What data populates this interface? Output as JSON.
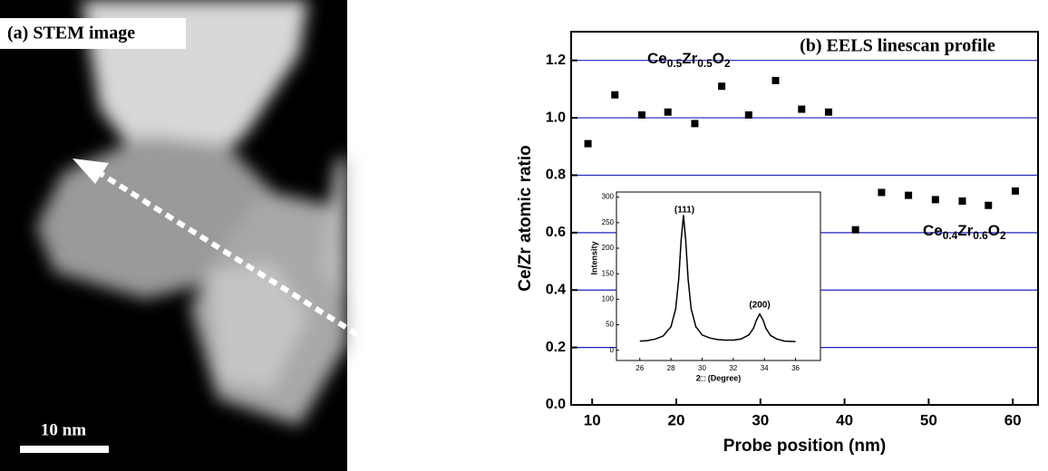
{
  "panel_a": {
    "label": "(a) STEM image",
    "scale_bar": "10 nm"
  },
  "chart_data": [
    {
      "type": "scatter",
      "title": "(b) EELS linescan profile",
      "x_label": "Probe position (nm)",
      "y_label": "Ce/Zr atomic ratio",
      "x": [
        9.5,
        12.7,
        15.9,
        19.0,
        22.2,
        25.4,
        28.6,
        31.8,
        34.9,
        38.1,
        41.3,
        44.4,
        47.6,
        50.8,
        54.0,
        57.1,
        60.3
      ],
      "values": [
        0.91,
        1.08,
        1.01,
        1.02,
        0.98,
        1.11,
        1.01,
        1.13,
        1.03,
        1.02,
        0.61,
        0.74,
        0.73,
        0.715,
        0.71,
        0.695,
        0.745
      ],
      "color": "#000000",
      "grid": true,
      "grid_color": "#2020c0",
      "xlim": [
        7.5,
        63
      ],
      "ylim": [
        0,
        1.3
      ],
      "xticks": [
        10,
        20,
        30,
        40,
        50,
        60
      ],
      "yticks": [
        {
          "value": 0,
          "label": "0.0"
        },
        0.2,
        0.4,
        0.6,
        0.8,
        {
          "value": 1,
          "label": "1.0"
        },
        1.2
      ],
      "annotations": [
        [
          "Ce",
          "0.5",
          "Zr",
          "0.5",
          "O",
          "2"
        ],
        [
          "Ce",
          "0.4",
          "Zr",
          "0.6",
          "O",
          "2"
        ]
      ]
    },
    {
      "type": "line",
      "x_label": "2□ (Degree)",
      "y_label": "Intensity",
      "x": [
        26,
        26.5,
        27,
        27.5,
        28,
        28.3,
        28.5,
        28.65,
        28.8,
        28.95,
        29.1,
        29.3,
        29.6,
        30,
        30.5,
        31,
        31.5,
        32,
        32.5,
        33,
        33.3,
        33.5,
        33.7,
        33.9,
        34.1,
        34.4,
        34.8,
        35.3,
        36
      ],
      "values": [
        18,
        19,
        22,
        28,
        46,
        81,
        140,
        215,
        265,
        215,
        140,
        81,
        46,
        30,
        24,
        21,
        20,
        20,
        22,
        30,
        43,
        60,
        71,
        60,
        43,
        29,
        22,
        18,
        17
      ],
      "color": "#000000",
      "xlim": [
        24.5,
        37.6
      ],
      "ylim": [
        -20,
        310
      ],
      "xticks": [
        26,
        28,
        30,
        32,
        34,
        36
      ],
      "yticks": [
        0,
        50,
        100,
        150,
        200,
        250,
        300
      ],
      "annotations": [
        "(111)",
        "(200)"
      ]
    }
  ]
}
